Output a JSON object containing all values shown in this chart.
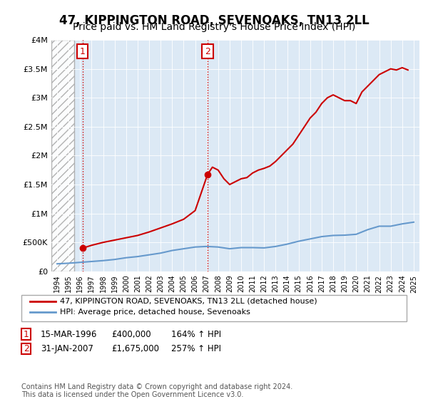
{
  "title": "47, KIPPINGTON ROAD, SEVENOAKS, TN13 2LL",
  "subtitle": "Price paid vs. HM Land Registry's House Price Index (HPI)",
  "title_fontsize": 12,
  "subtitle_fontsize": 10,
  "background_color": "#ffffff",
  "plot_bg_color": "#dce9f5",
  "ylim": [
    0,
    4000000
  ],
  "yticks": [
    0,
    500000,
    1000000,
    1500000,
    2000000,
    2500000,
    3000000,
    3500000,
    4000000
  ],
  "ytick_labels": [
    "£0",
    "£500K",
    "£1M",
    "£1.5M",
    "£2M",
    "£2.5M",
    "£3M",
    "£3.5M",
    "£4M"
  ],
  "xlim_start": 1993.5,
  "xlim_end": 2025.5,
  "xtick_years": [
    1994,
    1995,
    1996,
    1997,
    1998,
    1999,
    2000,
    2001,
    2002,
    2003,
    2004,
    2005,
    2006,
    2007,
    2008,
    2009,
    2010,
    2011,
    2012,
    2013,
    2014,
    2015,
    2016,
    2017,
    2018,
    2019,
    2020,
    2021,
    2022,
    2023,
    2024,
    2025
  ],
  "sale1_year": 1996.2,
  "sale1_price": 400000,
  "sale2_year": 2007.08,
  "sale2_price": 1675000,
  "sale1_label": "1",
  "sale2_label": "2",
  "property_line_color": "#cc0000",
  "hpi_line_color": "#6699cc",
  "legend_property": "47, KIPPINGTON ROAD, SEVENOAKS, TN13 2LL (detached house)",
  "legend_hpi": "HPI: Average price, detached house, Sevenoaks",
  "footnote1": "1   15-MAR-1996      £400,000       164% ↑ HPI",
  "footnote2": "2   31-JAN-2007      £1,675,000     257% ↑ HPI",
  "copyright": "Contains HM Land Registry data © Crown copyright and database right 2024.\nThis data is licensed under the Open Government Licence v3.0.",
  "hatch_end_year": 1995.5
}
